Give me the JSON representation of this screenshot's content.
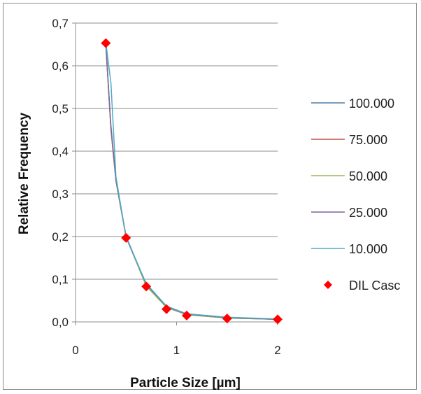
{
  "chart_data": {
    "type": "line",
    "xlabel": "Particle Size [µm]",
    "ylabel": "Relative Frequency",
    "xlim": [
      0,
      2
    ],
    "ylim": [
      0,
      0.7
    ],
    "x_ticks": [
      "0",
      "1",
      "2"
    ],
    "y_ticks": [
      "0,0",
      "0,1",
      "0,2",
      "0,3",
      "0,4",
      "0,5",
      "0,6",
      "0,7"
    ],
    "grid": "horizontal",
    "legend_position": "right",
    "series": [
      {
        "name": "100.000",
        "kind": "line",
        "color": "#4a7ea8",
        "x": [
          0.3,
          0.35,
          0.4,
          0.5,
          0.7,
          0.9,
          1.1,
          1.5,
          2.0
        ],
        "y": [
          0.655,
          0.45,
          0.33,
          0.2,
          0.086,
          0.035,
          0.018,
          0.01,
          0.006
        ]
      },
      {
        "name": "75.000",
        "kind": "line",
        "color": "#c0504d",
        "x": [
          0.3,
          0.35,
          0.4,
          0.5,
          0.7,
          0.9,
          1.1,
          1.5,
          2.0
        ],
        "y": [
          0.652,
          0.452,
          0.33,
          0.198,
          0.085,
          0.034,
          0.017,
          0.009,
          0.006
        ]
      },
      {
        "name": "50.000",
        "kind": "line",
        "color": "#9bbb59",
        "x": [
          0.3,
          0.35,
          0.4,
          0.5,
          0.7,
          0.9,
          1.1,
          1.5,
          2.0
        ],
        "y": [
          0.65,
          0.455,
          0.331,
          0.199,
          0.084,
          0.034,
          0.017,
          0.009,
          0.006
        ]
      },
      {
        "name": "25.000",
        "kind": "line",
        "color": "#8064a2",
        "x": [
          0.3,
          0.35,
          0.4,
          0.5,
          0.7,
          0.9,
          1.1,
          1.5,
          2.0
        ],
        "y": [
          0.648,
          0.46,
          0.333,
          0.2,
          0.088,
          0.036,
          0.018,
          0.01,
          0.006
        ]
      },
      {
        "name": "10.000",
        "kind": "line",
        "color": "#4bacc6",
        "x": [
          0.3,
          0.35,
          0.4,
          0.5,
          0.7,
          0.9,
          1.1,
          1.5,
          2.0
        ],
        "y": [
          0.655,
          0.56,
          0.34,
          0.197,
          0.09,
          0.037,
          0.019,
          0.011,
          0.007
        ]
      },
      {
        "name": "DIL Casc",
        "kind": "marker",
        "color": "#ff0000",
        "x": [
          0.3,
          0.5,
          0.7,
          0.9,
          1.1,
          1.5,
          2.0
        ],
        "y": [
          0.653,
          0.197,
          0.083,
          0.03,
          0.015,
          0.008,
          0.006
        ]
      }
    ]
  }
}
